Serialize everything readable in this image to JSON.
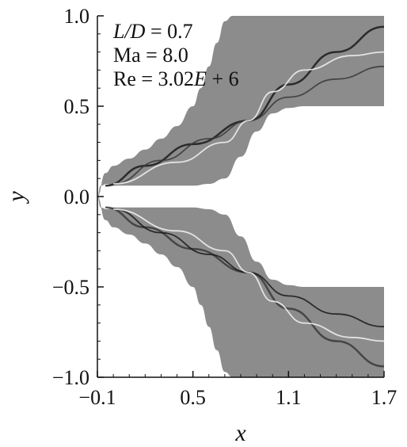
{
  "chart_data": {
    "type": "heatmap",
    "description_kind": "numerical schlieren contour",
    "title": "",
    "xlabel": "x",
    "ylabel": "y",
    "xlim": [
      -0.1,
      1.7
    ],
    "ylim": [
      -1.0,
      1.0
    ],
    "x_ticks": [
      "-0.1",
      "0.5",
      "1.1",
      "1.7"
    ],
    "x_tick_values": [
      -0.1,
      0.5,
      1.1,
      1.7
    ],
    "y_ticks": [
      "1.0",
      "0.5",
      "0.0",
      "-0.5",
      "-1.0"
    ],
    "y_tick_values": [
      1.0,
      0.5,
      0.0,
      -0.5,
      -1.0
    ],
    "annotations": {
      "line1": "L/D = 0.7",
      "line2": "Ma = 8.0",
      "line3": "Re = 3.02E + 6"
    },
    "body_profile": {
      "x": [
        -0.1,
        -0.08,
        -0.04,
        0.0,
        0.1,
        0.2,
        0.3,
        0.4,
        0.5,
        0.6,
        0.7,
        0.8,
        0.9,
        1.0,
        1.1,
        1.2,
        1.3,
        1.4,
        1.5,
        1.6,
        1.7
      ],
      "upper_y": [
        0.0,
        0.06,
        0.07,
        0.06,
        0.06,
        0.06,
        0.06,
        0.06,
        0.06,
        0.07,
        0.1,
        0.22,
        0.36,
        0.46,
        0.49,
        0.5,
        0.5,
        0.5,
        0.5,
        0.5,
        0.5
      ],
      "lower_y": [
        0.0,
        -0.06,
        -0.07,
        -0.06,
        -0.06,
        -0.06,
        -0.06,
        -0.06,
        -0.06,
        -0.07,
        -0.1,
        -0.22,
        -0.36,
        -0.46,
        -0.49,
        -0.5,
        -0.5,
        -0.5,
        -0.5,
        -0.5,
        -0.5
      ]
    },
    "outer_boundary": {
      "x": [
        -0.1,
        -0.05,
        0.0,
        0.1,
        0.2,
        0.3,
        0.4,
        0.5,
        0.55,
        0.6,
        0.65,
        0.7,
        0.75,
        1.7
      ],
      "y": [
        0.0,
        0.13,
        0.17,
        0.21,
        0.26,
        0.32,
        0.39,
        0.5,
        0.6,
        0.72,
        0.85,
        0.97,
        1.0,
        1.0
      ]
    },
    "shock_lines": [
      {
        "x": [
          -0.05,
          0.2,
          0.5,
          0.85,
          1.1,
          1.4,
          1.7
        ],
        "y": [
          0.06,
          0.17,
          0.29,
          0.42,
          0.62,
          0.8,
          0.94
        ]
      },
      {
        "x": [
          0.0,
          0.3,
          0.6,
          0.85,
          1.1,
          1.4,
          1.7
        ],
        "y": [
          0.07,
          0.2,
          0.32,
          0.42,
          0.55,
          0.65,
          0.72
        ]
      },
      {
        "x": [
          0.0,
          0.4,
          0.7,
          0.85,
          1.0,
          1.2,
          1.5,
          1.7
        ],
        "y": [
          0.07,
          0.19,
          0.3,
          0.42,
          0.58,
          0.7,
          0.78,
          0.8
        ]
      }
    ],
    "colors": {
      "field": "#8c8c8c",
      "shock_dark": "#1a1a1a",
      "shock_light": "#f2f2f2",
      "body": "#ffffff"
    }
  }
}
